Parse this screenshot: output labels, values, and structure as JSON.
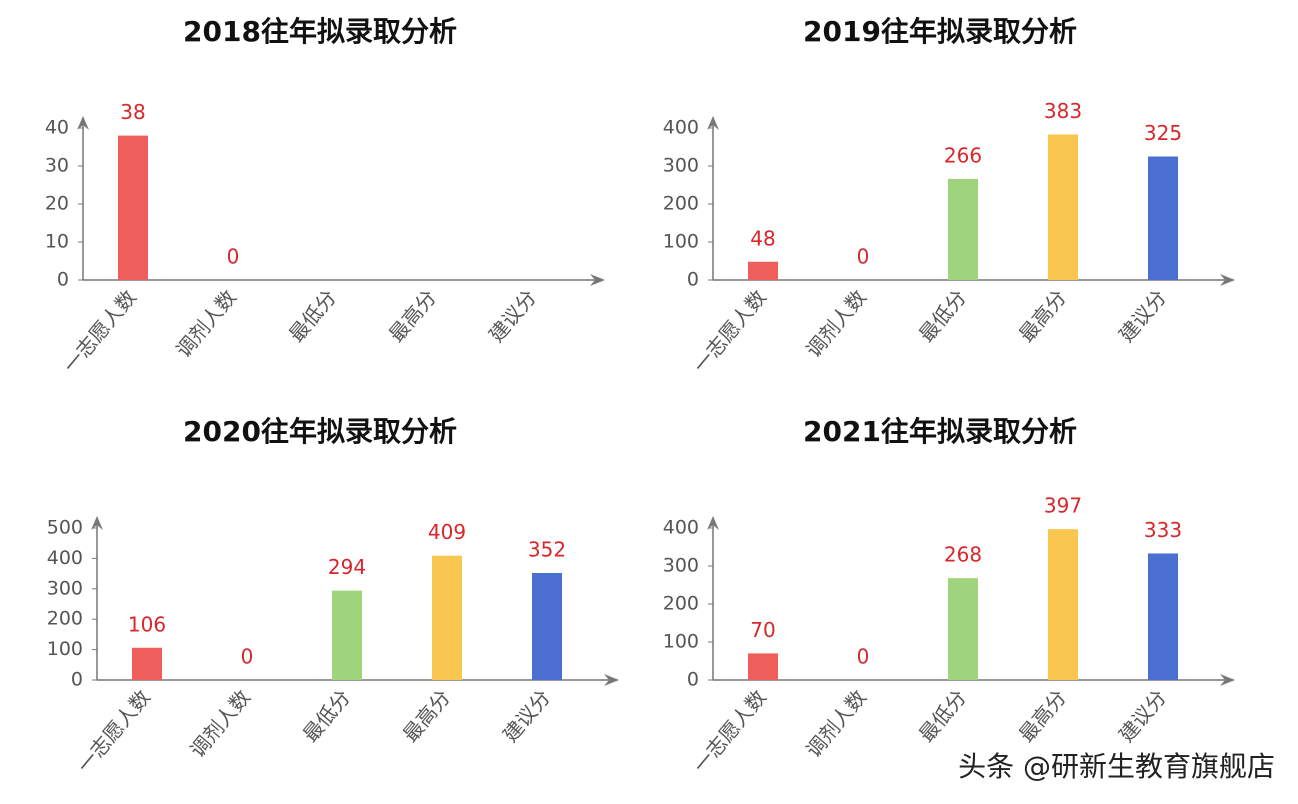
{
  "chart_data": [
    {
      "type": "bar",
      "title": "2018往年拟录取分析",
      "categories": [
        "一志愿人数",
        "调剂人数",
        "最低分",
        "最高分",
        "建议分"
      ],
      "values": [
        38,
        0,
        null,
        null,
        null
      ],
      "colors": [
        "#ee5f5b",
        "#ee5f5b",
        "#9fd37c",
        "#f9c74f",
        "#4a6fd1"
      ],
      "ylim": [
        0,
        40
      ],
      "yticks": [
        0,
        10,
        20,
        30,
        40
      ]
    },
    {
      "type": "bar",
      "title": "2019往年拟录取分析",
      "categories": [
        "一志愿人数",
        "调剂人数",
        "最低分",
        "最高分",
        "建议分"
      ],
      "values": [
        48,
        0,
        266,
        383,
        325
      ],
      "colors": [
        "#ee5f5b",
        "#ee5f5b",
        "#9fd37c",
        "#f9c74f",
        "#4a6fd1"
      ],
      "ylim": [
        0,
        400
      ],
      "yticks": [
        0,
        100,
        200,
        300,
        400
      ]
    },
    {
      "type": "bar",
      "title": "2020往年拟录取分析",
      "categories": [
        "一志愿人数",
        "调剂人数",
        "最低分",
        "最高分",
        "建议分"
      ],
      "values": [
        106,
        0,
        294,
        409,
        352
      ],
      "colors": [
        "#ee5f5b",
        "#ee5f5b",
        "#9fd37c",
        "#f9c74f",
        "#4a6fd1"
      ],
      "ylim": [
        0,
        500
      ],
      "yticks": [
        0,
        100,
        200,
        300,
        400,
        500
      ]
    },
    {
      "type": "bar",
      "title": "2021往年拟录取分析",
      "categories": [
        "一志愿人数",
        "调剂人数",
        "最低分",
        "最高分",
        "建议分"
      ],
      "values": [
        70,
        0,
        268,
        397,
        333
      ],
      "colors": [
        "#ee5f5b",
        "#ee5f5b",
        "#9fd37c",
        "#f9c74f",
        "#4a6fd1"
      ],
      "ylim": [
        0,
        400
      ],
      "yticks": [
        0,
        100,
        200,
        300,
        400
      ]
    }
  ],
  "watermark": "头条 @研新生教育旗舰店"
}
